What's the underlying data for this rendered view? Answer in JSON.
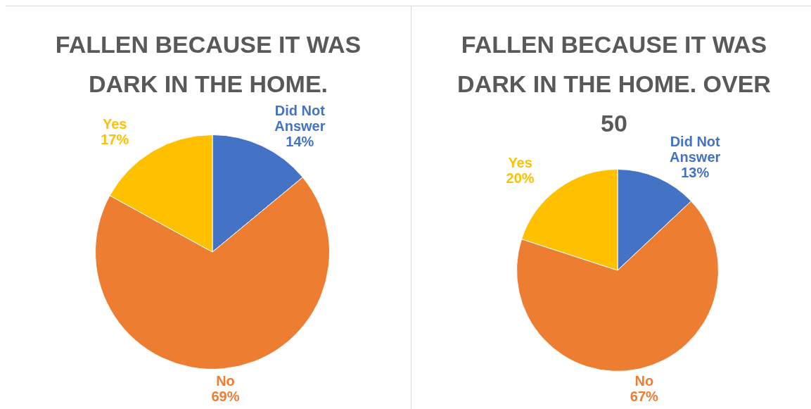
{
  "chart_data": [
    {
      "type": "pie",
      "title": "FALLEN BECAUSE IT WAS DARK IN THE HOME.",
      "categories": [
        "Did Not Answer",
        "No",
        "Yes"
      ],
      "values": [
        14,
        69,
        17
      ],
      "colors": [
        "#4472c4",
        "#ed7d31",
        "#ffc000"
      ],
      "value_labels": [
        "14%",
        "69%",
        "17%"
      ]
    },
    {
      "type": "pie",
      "title": "FALLEN BECAUSE IT WAS DARK IN THE HOME. OVER 50",
      "categories": [
        "Did Not Answer",
        "No",
        "Yes"
      ],
      "values": [
        13,
        67,
        20
      ],
      "colors": [
        "#4472c4",
        "#ed7d31",
        "#ffc000"
      ],
      "value_labels": [
        "13%",
        "67%",
        "20%"
      ]
    }
  ]
}
